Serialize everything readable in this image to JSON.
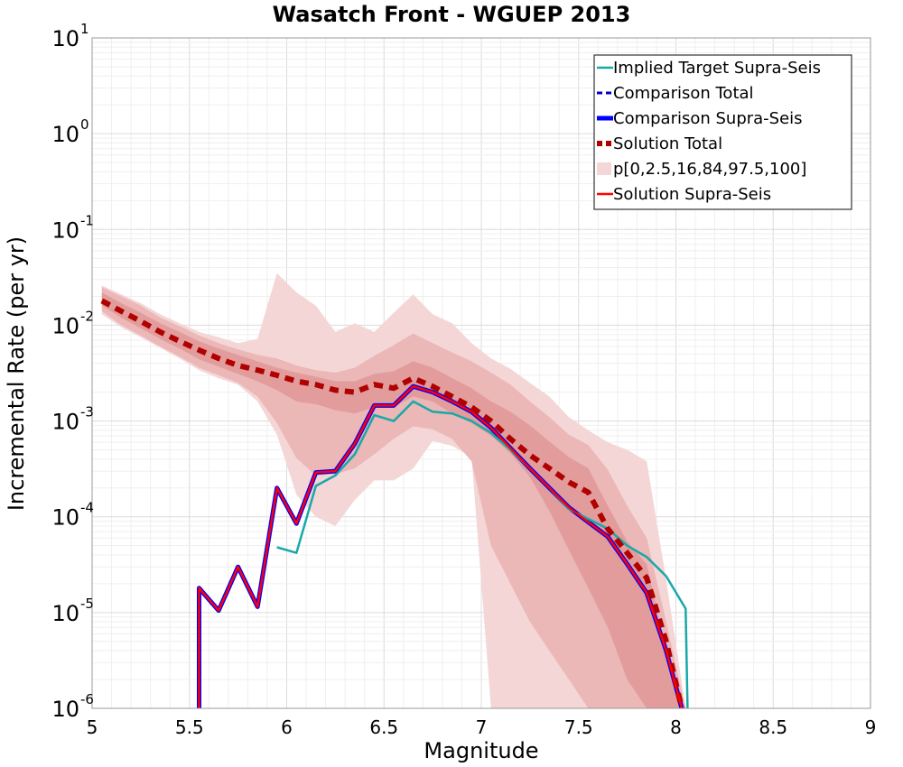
{
  "chart_data": {
    "type": "line",
    "title": "Wasatch Front - WGUEP 2013",
    "xlabel": "Magnitude",
    "ylabel": "Incremental Rate (per yr)",
    "xlim": [
      5,
      9
    ],
    "ylim": [
      1e-06,
      10
    ],
    "yscale": "log",
    "grid": true,
    "legend_position": "top-right",
    "x_ticks": [
      "5",
      "5.5",
      "6",
      "6.5",
      "7",
      "7.5",
      "8",
      "8.5",
      "9"
    ],
    "y_ticks": [
      {
        "base": "10",
        "exp": "-6",
        "value": 1e-06
      },
      {
        "base": "10",
        "exp": "-5",
        "value": 1e-05
      },
      {
        "base": "10",
        "exp": "-4",
        "value": 0.0001
      },
      {
        "base": "10",
        "exp": "-3",
        "value": 0.001
      },
      {
        "base": "10",
        "exp": "-2",
        "value": 0.01
      },
      {
        "base": "10",
        "exp": "-1",
        "value": 0.1
      },
      {
        "base": "10",
        "exp": "0",
        "value": 1
      },
      {
        "base": "10",
        "exp": "1",
        "value": 10
      }
    ],
    "bands": [
      {
        "name": "p[0,2.5,16,84,97.5,100]",
        "level": "0-100",
        "color": "#f4d6d6",
        "x": [
          5.05,
          5.15,
          5.25,
          5.35,
          5.45,
          5.55,
          5.65,
          5.75,
          5.85,
          5.95,
          6.05,
          6.15,
          6.25,
          6.35,
          6.45,
          6.55,
          6.65,
          6.75,
          6.85,
          6.95,
          7.05,
          7.15,
          7.25,
          7.35,
          7.45,
          7.55,
          7.65,
          7.75,
          7.85,
          7.95,
          8.05
        ],
        "upper": [
          0.026,
          0.021,
          0.017,
          0.013,
          0.0105,
          0.0085,
          0.0075,
          0.0065,
          0.0072,
          0.035,
          0.022,
          0.016,
          0.0085,
          0.0105,
          0.0085,
          0.0135,
          0.021,
          0.013,
          0.0105,
          0.0065,
          0.0045,
          0.0035,
          0.0025,
          0.0018,
          0.0011,
          0.0008,
          0.0006,
          0.0005,
          0.00038,
          2.2e-05,
          1e-06
        ],
        "lower": [
          0.013,
          0.0095,
          0.0075,
          0.0058,
          0.0045,
          0.0034,
          0.0028,
          0.0024,
          0.0016,
          0.00072,
          0.00017,
          0.0001,
          8e-05,
          0.00015,
          0.00024,
          0.00024,
          0.00032,
          0.00062,
          0.00055,
          0.00042,
          1e-06,
          1e-06,
          1e-06,
          1e-06,
          1e-06,
          1e-06,
          1e-06,
          1e-06,
          1e-06,
          1e-06,
          1e-06
        ]
      },
      {
        "name": "",
        "level": "2.5-97.5",
        "color": "#ebb7b7",
        "x": [
          5.05,
          5.15,
          5.25,
          5.35,
          5.45,
          5.55,
          5.65,
          5.75,
          5.85,
          5.95,
          6.05,
          6.15,
          6.25,
          6.35,
          6.45,
          6.55,
          6.65,
          6.75,
          6.85,
          6.95,
          7.05,
          7.15,
          7.25,
          7.35,
          7.45,
          7.55,
          7.65,
          7.75,
          7.85,
          7.95,
          8.05
        ],
        "upper": [
          0.025,
          0.02,
          0.016,
          0.012,
          0.0098,
          0.0078,
          0.0065,
          0.0056,
          0.0049,
          0.0045,
          0.0038,
          0.0034,
          0.0032,
          0.0036,
          0.0048,
          0.0062,
          0.0082,
          0.0065,
          0.0052,
          0.0042,
          0.0032,
          0.0024,
          0.0016,
          0.0011,
          0.00072,
          0.00056,
          0.00031,
          0.00013,
          6e-05,
          8e-06,
          1e-06
        ],
        "lower": [
          0.014,
          0.01,
          0.0078,
          0.006,
          0.0047,
          0.0036,
          0.003,
          0.0025,
          0.0018,
          0.00095,
          0.00041,
          0.00027,
          0.00028,
          0.00032,
          0.00045,
          0.00065,
          0.00088,
          0.00082,
          0.00065,
          0.00038,
          5e-05,
          2e-05,
          8e-06,
          4e-06,
          2e-06,
          1e-06,
          1e-06,
          1e-06,
          1e-06,
          1e-06,
          1e-06
        ]
      },
      {
        "name": "",
        "level": "16-84",
        "color": "#e29c9c",
        "x": [
          5.05,
          5.15,
          5.25,
          5.35,
          5.45,
          5.55,
          5.65,
          5.75,
          5.85,
          5.95,
          6.05,
          6.15,
          6.25,
          6.35,
          6.45,
          6.55,
          6.65,
          6.75,
          6.85,
          6.95,
          7.05,
          7.15,
          7.25,
          7.35,
          7.45,
          7.55,
          7.65,
          7.75,
          7.85,
          7.95,
          8.05
        ],
        "upper": [
          0.022,
          0.017,
          0.0135,
          0.0105,
          0.0085,
          0.0068,
          0.0057,
          0.0049,
          0.0042,
          0.0036,
          0.0032,
          0.0029,
          0.0026,
          0.0026,
          0.0031,
          0.0033,
          0.0042,
          0.0036,
          0.0028,
          0.0022,
          0.0016,
          0.00125,
          0.0009,
          0.00061,
          0.00042,
          0.00032,
          0.00013,
          5.5e-05,
          3.2e-05,
          4e-06,
          1e-06
        ],
        "lower": [
          0.016,
          0.012,
          0.0093,
          0.0072,
          0.0057,
          0.0044,
          0.0037,
          0.0031,
          0.0026,
          0.0021,
          0.0016,
          0.0015,
          0.0013,
          0.0012,
          0.0014,
          0.0014,
          0.0018,
          0.0016,
          0.0012,
          0.00095,
          0.0007,
          0.00046,
          0.00026,
          0.000115,
          4.5e-05,
          1.8e-05,
          7e-06,
          2e-06,
          1e-06,
          1e-06,
          1e-06
        ]
      }
    ],
    "series": [
      {
        "name": "Implied Target Supra-Seis",
        "color": "#19a8a8",
        "style": "solid",
        "x": [
          5.95,
          6.05,
          6.15,
          6.25,
          6.35,
          6.45,
          6.55,
          6.65,
          6.75,
          6.85,
          6.95,
          7.05,
          7.15,
          7.25,
          7.35,
          7.45,
          7.55,
          7.65,
          7.75,
          7.85,
          7.95,
          8.05,
          8.06
        ],
        "y": [
          4.8e-05,
          4.2e-05,
          0.00021,
          0.00027,
          0.00045,
          0.00115,
          0.001,
          0.0016,
          0.00125,
          0.0012,
          0.001,
          0.00075,
          0.0005,
          0.00032,
          0.0002,
          0.00012,
          9.5e-05,
          7.5e-05,
          5e-05,
          3.8e-05,
          2.4e-05,
          1.1e-05,
          1e-06
        ]
      },
      {
        "name": "Comparison Total",
        "color": "#0000c8",
        "style": "dashed",
        "x": [],
        "y": []
      },
      {
        "name": "Comparison Supra-Seis",
        "color": "#0000ff",
        "style": "solid-thick",
        "x": [
          5.55,
          5.55,
          5.65,
          5.75,
          5.85,
          5.95,
          6.05,
          6.15,
          6.25,
          6.35,
          6.45,
          6.55,
          6.65,
          6.75,
          6.85,
          6.95,
          7.05,
          7.15,
          7.25,
          7.35,
          7.45,
          7.55,
          7.65,
          7.75,
          7.85,
          7.95,
          8.03
        ],
        "y": [
          1e-06,
          1.8e-05,
          1.05e-05,
          3e-05,
          1.15e-05,
          0.0002,
          8.5e-05,
          0.00029,
          0.0003,
          0.00058,
          0.00145,
          0.00145,
          0.0023,
          0.002,
          0.0016,
          0.00125,
          0.00085,
          0.00052,
          0.00032,
          0.0002,
          0.000125,
          8.8e-05,
          6.2e-05,
          3.2e-05,
          1.6e-05,
          4e-06,
          1e-06
        ]
      },
      {
        "name": "Solution Total",
        "color": "#b00000",
        "style": "dashed-thick",
        "x": [
          5.05,
          5.15,
          5.25,
          5.35,
          5.45,
          5.55,
          5.65,
          5.75,
          5.85,
          5.95,
          6.05,
          6.15,
          6.25,
          6.35,
          6.45,
          6.55,
          6.65,
          6.75,
          6.85,
          6.95,
          7.05,
          7.15,
          7.25,
          7.35,
          7.45,
          7.55,
          7.65,
          7.75,
          7.85,
          7.95,
          8.03
        ],
        "y": [
          0.018,
          0.014,
          0.011,
          0.0085,
          0.0068,
          0.0055,
          0.0045,
          0.0038,
          0.0034,
          0.003,
          0.0026,
          0.0024,
          0.0021,
          0.002,
          0.0024,
          0.0022,
          0.0028,
          0.0023,
          0.0018,
          0.0014,
          0.001,
          0.00065,
          0.00044,
          0.00032,
          0.00023,
          0.00018,
          7.5e-05,
          4.2e-05,
          2.3e-05,
          5e-06,
          1e-06
        ]
      },
      {
        "name": "Solution Supra-Seis",
        "color": "#ff0000",
        "style": "solid",
        "x": [
          5.55,
          5.55,
          5.65,
          5.75,
          5.85,
          5.95,
          6.05,
          6.15,
          6.25,
          6.35,
          6.45,
          6.55,
          6.65,
          6.75,
          6.85,
          6.95,
          7.05,
          7.15,
          7.25,
          7.35,
          7.45,
          7.55,
          7.65,
          7.75,
          7.85,
          7.95,
          8.03
        ],
        "y": [
          1e-06,
          1.8e-05,
          1.05e-05,
          3e-05,
          1.15e-05,
          0.0002,
          8.5e-05,
          0.00029,
          0.0003,
          0.00058,
          0.00145,
          0.00145,
          0.0023,
          0.002,
          0.0016,
          0.00125,
          0.00085,
          0.00052,
          0.00032,
          0.0002,
          0.000125,
          8.8e-05,
          6.2e-05,
          3.2e-05,
          1.6e-05,
          4e-06,
          1e-06
        ]
      }
    ],
    "legend": [
      {
        "label": "Implied Target Supra-Seis",
        "color": "#19a8a8",
        "style": "solid"
      },
      {
        "label": "Comparison Total",
        "color": "#0000c8",
        "style": "dashed"
      },
      {
        "label": "Comparison Supra-Seis",
        "color": "#0000ff",
        "style": "solid-thick"
      },
      {
        "label": "Solution Total",
        "color": "#b00000",
        "style": "dashed-thick"
      },
      {
        "label": "p[0,2.5,16,84,97.5,100]",
        "color": "#f4d6d6",
        "style": "patch"
      },
      {
        "label": "Solution Supra-Seis",
        "color": "#ff0000",
        "style": "solid"
      }
    ]
  }
}
